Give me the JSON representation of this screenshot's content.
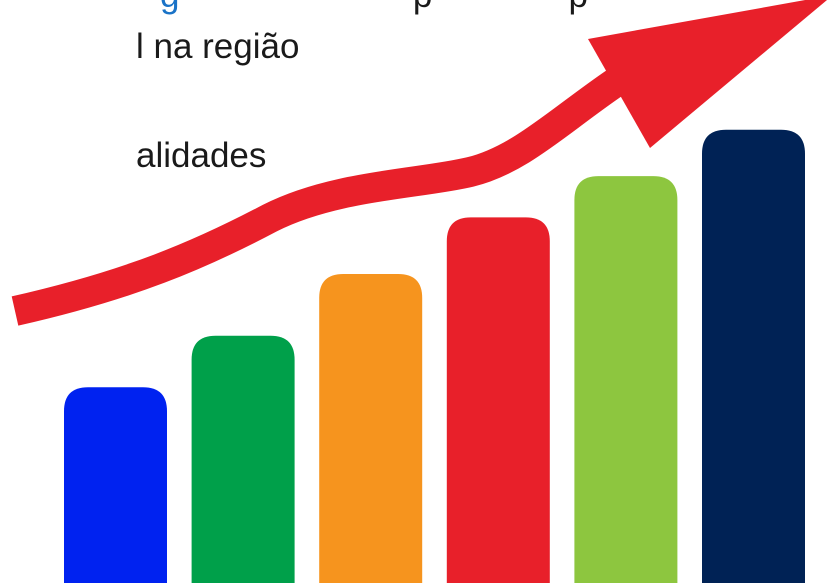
{
  "slide": {
    "lines": [
      {
        "segments": [
          {
            "text": "g",
            "color": "#1a73c7"
          },
          {
            "text": "                        ",
            "color": "#1a1a1a"
          },
          {
            "text": "p",
            "color": "#1a1a1a"
          },
          {
            "text": "              ",
            "color": "#1a1a1a"
          },
          {
            "text": "p",
            "color": "#1a1a1a"
          }
        ]
      },
      {
        "text": "l na região"
      },
      {
        "text": "alidades"
      }
    ]
  },
  "illustration": {
    "description_icon": "growth-bar-chart-with-rising-arrow-icon",
    "arrow_color": "#e8202a",
    "bar_colors": [
      "#0022f0",
      "#00a04a",
      "#f6941e",
      "#e8202a",
      "#8dc63f",
      "#002255"
    ],
    "bar_levels": [
      0.38,
      0.48,
      0.6,
      0.71,
      0.79,
      0.88
    ]
  }
}
